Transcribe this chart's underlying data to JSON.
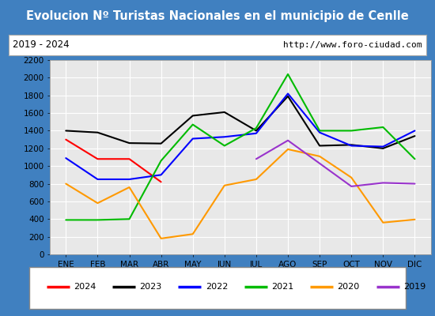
{
  "title": "Evolucion Nº Turistas Nacionales en el municipio de Cenlle",
  "subtitle_left": "2019 - 2024",
  "subtitle_right": "http://www.foro-ciudad.com",
  "months": [
    "ENE",
    "FEB",
    "MAR",
    "ABR",
    "MAY",
    "JUN",
    "JUL",
    "AGO",
    "SEP",
    "OCT",
    "NOV",
    "DIC"
  ],
  "ylim": [
    0,
    2200
  ],
  "yticks": [
    0,
    200,
    400,
    600,
    800,
    1000,
    1200,
    1400,
    1600,
    1800,
    2000,
    2200
  ],
  "series": {
    "2024": {
      "color": "#ff0000",
      "data": [
        1300,
        1080,
        1080,
        820,
        null,
        null,
        null,
        null,
        null,
        null,
        null,
        null
      ]
    },
    "2023": {
      "color": "#000000",
      "data": [
        1400,
        1380,
        1260,
        1255,
        1570,
        1610,
        1400,
        1790,
        1230,
        1240,
        1200,
        1340
      ]
    },
    "2022": {
      "color": "#0000ff",
      "data": [
        1090,
        850,
        850,
        900,
        1310,
        1330,
        1370,
        1820,
        1380,
        1230,
        1220,
        1400
      ]
    },
    "2021": {
      "color": "#00bb00",
      "data": [
        390,
        390,
        400,
        1060,
        1470,
        1230,
        1430,
        2040,
        1400,
        1400,
        1440,
        1080
      ]
    },
    "2020": {
      "color": "#ff9900",
      "data": [
        800,
        580,
        760,
        180,
        230,
        780,
        850,
        1190,
        1110,
        870,
        360,
        395
      ]
    },
    "2019": {
      "color": "#9933cc",
      "data": [
        null,
        null,
        null,
        null,
        null,
        null,
        1080,
        1290,
        1030,
        770,
        810,
        800
      ]
    }
  },
  "legend_order": [
    "2024",
    "2023",
    "2022",
    "2021",
    "2020",
    "2019"
  ],
  "title_bg_color": "#4080c0",
  "title_text_color": "#ffffff",
  "outer_bg_color": "#4080c0",
  "inner_bg_color": "#e8e8e8",
  "plot_bg_color": "#e8e8e8",
  "grid_color": "#ffffff",
  "subtitle_bg_color": "#ffffff",
  "subtitle_border_color": "#aaaaaa"
}
